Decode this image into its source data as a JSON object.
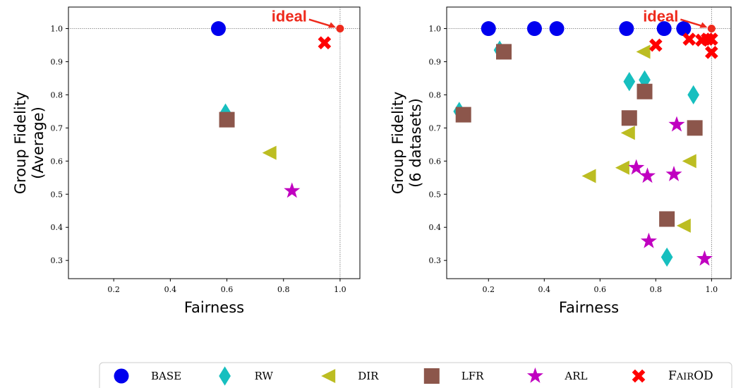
{
  "colors": {
    "base": "#0000ee",
    "rw": "#17bfbf",
    "dir": "#bcbd22",
    "lfr": "#8c564b",
    "arl": "#c000c0",
    "fairod": "#ff0000",
    "ideal": "#ee2a1c"
  },
  "legend": [
    {
      "key": "base",
      "label": "BASE",
      "marker": "circle"
    },
    {
      "key": "rw",
      "label": "RW",
      "marker": "diamond"
    },
    {
      "key": "dir",
      "label": "DIR",
      "marker": "triangle-left"
    },
    {
      "key": "lfr",
      "label": "LFR",
      "marker": "square"
    },
    {
      "key": "arl",
      "label": "ARL",
      "marker": "star"
    },
    {
      "key": "fairod",
      "label": "FAIROD",
      "label_parts": [
        "F",
        "AIR",
        "OD"
      ],
      "marker": "x"
    }
  ],
  "chart_data": [
    {
      "type": "scatter",
      "xlabel": "Fairness",
      "ylabel_lines": [
        "Group Fidelity",
        "(Average)"
      ],
      "xlim": [
        0.04,
        1.07
      ],
      "ylim": [
        0.245,
        1.065
      ],
      "xticks": [
        "0.2",
        "0.4",
        "0.6",
        "0.8",
        "1.0"
      ],
      "yticks": [
        "0.3",
        "0.4",
        "0.5",
        "0.6",
        "0.7",
        "0.8",
        "0.9",
        "1.0"
      ],
      "ideal": {
        "label": "ideal",
        "x": 1.0,
        "y": 1.0
      },
      "series": [
        {
          "name": "BASE",
          "key": "base",
          "marker": "circle",
          "points": [
            [
              0.57,
              1.0
            ]
          ]
        },
        {
          "name": "RW",
          "key": "rw",
          "marker": "diamond",
          "points": [
            [
              0.595,
              0.745
            ]
          ]
        },
        {
          "name": "DIR",
          "key": "dir",
          "marker": "triangle-left",
          "points": [
            [
              0.75,
              0.625
            ]
          ]
        },
        {
          "name": "LFR",
          "key": "lfr",
          "marker": "square",
          "points": [
            [
              0.6,
              0.725
            ]
          ]
        },
        {
          "name": "ARL",
          "key": "arl",
          "marker": "star",
          "points": [
            [
              0.83,
              0.51
            ]
          ]
        },
        {
          "name": "FAIROD",
          "key": "fairod",
          "marker": "x",
          "points": [
            [
              0.945,
              0.957
            ]
          ]
        }
      ]
    },
    {
      "type": "scatter",
      "xlabel": "Fairness",
      "ylabel_lines": [
        "Group Fidelity",
        "(6 datasets)"
      ],
      "xlim": [
        0.05,
        1.07
      ],
      "ylim": [
        0.245,
        1.065
      ],
      "xticks": [
        "0.2",
        "0.4",
        "0.6",
        "0.8",
        "1.0"
      ],
      "yticks": [
        "0.3",
        "0.4",
        "0.5",
        "0.6",
        "0.7",
        "0.8",
        "0.9",
        "1.0"
      ],
      "ideal": {
        "label": "ideal",
        "x": 1.0,
        "y": 1.0
      },
      "series": [
        {
          "name": "BASE",
          "key": "base",
          "marker": "circle",
          "points": [
            [
              0.2,
              1.0
            ],
            [
              0.365,
              1.0
            ],
            [
              0.445,
              1.0
            ],
            [
              0.695,
              1.0
            ],
            [
              0.83,
              1.0
            ],
            [
              0.9,
              1.0
            ]
          ]
        },
        {
          "name": "RW",
          "key": "rw",
          "marker": "diamond",
          "points": [
            [
              0.095,
              0.75
            ],
            [
              0.24,
              0.935
            ],
            [
              0.705,
              0.84
            ],
            [
              0.76,
              0.845
            ],
            [
              0.935,
              0.8
            ],
            [
              0.84,
              0.31
            ]
          ]
        },
        {
          "name": "DIR",
          "key": "dir",
          "marker": "triangle-left",
          "points": [
            [
              0.56,
              0.555
            ],
            [
              0.68,
              0.58
            ],
            [
              0.7,
              0.685
            ],
            [
              0.755,
              0.93
            ],
            [
              0.92,
              0.6
            ],
            [
              0.9,
              0.405
            ]
          ]
        },
        {
          "name": "LFR",
          "key": "lfr",
          "marker": "square",
          "points": [
            [
              0.11,
              0.74
            ],
            [
              0.255,
              0.93
            ],
            [
              0.705,
              0.73
            ],
            [
              0.76,
              0.81
            ],
            [
              0.94,
              0.7
            ],
            [
              0.84,
              0.425
            ]
          ]
        },
        {
          "name": "ARL",
          "key": "arl",
          "marker": "star",
          "points": [
            [
              0.73,
              0.58
            ],
            [
              0.77,
              0.555
            ],
            [
              0.875,
              0.71
            ],
            [
              0.865,
              0.56
            ],
            [
              0.775,
              0.358
            ],
            [
              0.975,
              0.305
            ]
          ]
        },
        {
          "name": "FAIROD",
          "key": "fairod",
          "marker": "x",
          "points": [
            [
              0.8,
              0.95
            ],
            [
              0.92,
              0.968
            ],
            [
              0.965,
              0.965
            ],
            [
              0.985,
              0.968
            ],
            [
              1.0,
              0.968
            ],
            [
              1.0,
              0.928
            ]
          ]
        }
      ]
    }
  ]
}
